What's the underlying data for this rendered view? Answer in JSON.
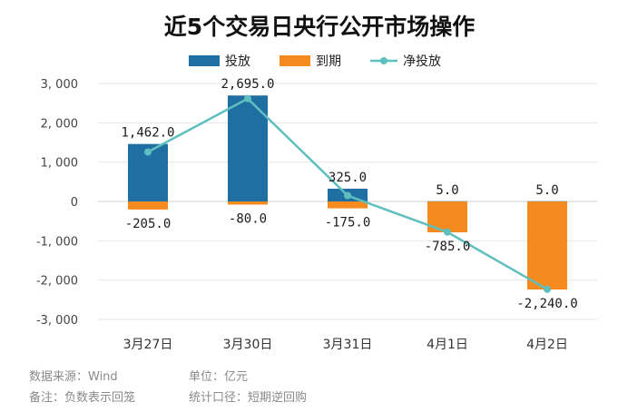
{
  "chart_data": {
    "type": "bar",
    "title": "近5个交易日央行公开市场操作",
    "categories": [
      "3月27日",
      "3月30日",
      "3月31日",
      "4月1日",
      "4月2日"
    ],
    "series": [
      {
        "name": "投放",
        "kind": "bar",
        "color": "#1f6fa3",
        "values": [
          1462,
          2695,
          325,
          5,
          5
        ],
        "labels": [
          "1,462.0",
          "2,695.0",
          "325.0",
          "5.0",
          "5.0"
        ]
      },
      {
        "name": "到期",
        "kind": "bar",
        "color": "#f58b1f",
        "values": [
          -205,
          -80,
          -175,
          -785,
          -2240
        ],
        "labels": [
          "-205.0",
          "-80.0",
          "-175.0",
          "-785.0",
          "-2,240.0"
        ]
      },
      {
        "name": "净投放",
        "kind": "line",
        "color": "#5fbfbf",
        "values": [
          1257,
          2615,
          150,
          -780,
          -2235
        ]
      }
    ],
    "ylim": [
      -3000,
      3000
    ],
    "yticks": [
      3000,
      2000,
      1000,
      0,
      -1000,
      -2000,
      -3000
    ],
    "ytick_labels": [
      "3, 000",
      "2, 000",
      "1, 000",
      "0",
      "-1, 000",
      "-2, 000",
      "-3, 000"
    ],
    "grid": true,
    "legend": "top-center"
  },
  "footer": {
    "source": "数据来源：Wind",
    "unit": "单位：亿元",
    "note": "备注：负数表示回笼",
    "scope": "统计口径：短期逆回购"
  }
}
